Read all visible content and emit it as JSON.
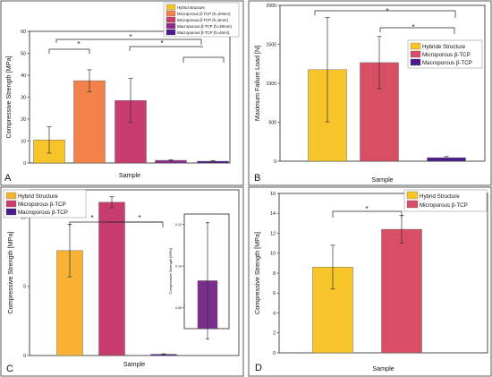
{
  "colors": {
    "hybrid": "#f7c52a",
    "hybrid_c": "#f9b233",
    "micro20": "#f2824a",
    "micro6": "#c93d6e",
    "micro_red": "#d84e65",
    "macro20": "#8e2a8a",
    "macro6": "#4b1a8c",
    "macro": "#4b1a8c",
    "inset": "#7a2f8e"
  },
  "panels": {
    "A": {
      "letter": "A",
      "chart_data": {
        "type": "bar",
        "categories": [
          "Hybrid structure",
          "Microporous β-TCP (h=20mm)",
          "Microporous β-TCP (h=6mm)",
          "Macroporous β-TCP (h=20mm)",
          "Macroporous β-TCP (h=6mm)"
        ],
        "values": [
          10.5,
          37.5,
          28.5,
          1.2,
          0.8
        ],
        "errors": [
          6,
          5,
          10,
          0.3,
          0.3
        ],
        "colors": [
          "#f7c52a",
          "#f2824a",
          "#c93d6e",
          "#8e2a8a",
          "#4b1a8c"
        ],
        "xlabel": "Sample",
        "ylabel": "Compressive Strength [MPa]",
        "ylim": [
          0,
          60
        ],
        "yticks": [
          "0",
          "10",
          "20",
          "30",
          "40",
          "50",
          "60"
        ],
        "legend": [
          "Hybrid structure",
          "Microporous β-TCP (h=20mm)",
          "Microporous β-TCP (h=6mm)",
          "Macroporous β-TCP (h=20mm)",
          "Macroporous β-TCP (h=6mm)"
        ],
        "legend_position": "top-right",
        "significance": [
          "*",
          "*",
          "*"
        ]
      }
    },
    "B": {
      "letter": "B",
      "chart_data": {
        "type": "bar",
        "categories": [
          "Hybride Structure",
          "Microporous β-TCP",
          "Macroporous β-TCP"
        ],
        "values": [
          1175,
          1265,
          45
        ],
        "errors": [
          670,
          335,
          15
        ],
        "colors": [
          "#f7c52a",
          "#d84e65",
          "#4b1a8c"
        ],
        "xlabel": "Sample",
        "ylabel": "Maximum Failure Load [N]",
        "ylim": [
          0,
          2000
        ],
        "yticks": [
          "0",
          "500",
          "1000",
          "1500",
          "2000"
        ],
        "legend": [
          "Hybride Structure",
          "Microporous β-TCP",
          "Macroporous β-TCP"
        ],
        "legend_position": "right",
        "significance": [
          "*",
          "*"
        ]
      }
    },
    "C": {
      "letter": "C",
      "chart_data": {
        "type": "bar",
        "categories": [
          "Hybrid Structure",
          "Microporous β-TCP",
          "Macroporous β-TCP"
        ],
        "values": [
          7.6,
          11.1,
          0.09
        ],
        "errors": [
          1.9,
          0.4,
          0.03
        ],
        "colors": [
          "#f9b233",
          "#c93d6e",
          "#4b1a8c"
        ],
        "xlabel": "Sample",
        "ylabel": "Compressive Strength [MPa]",
        "ylim": [
          0,
          12
        ],
        "yticks": [
          "0",
          "5",
          "10"
        ],
        "legend": [
          "Hybrid Structure",
          "Microporous β-TCP",
          "Macroporous β-TCP"
        ],
        "legend_position": "top-left",
        "significance": [
          "*",
          "*"
        ],
        "inset": {
          "ylabel": "Compressive Strength [MPa]",
          "yticks": [
            "0.08",
            "0.10",
            "0.12"
          ],
          "ylim": [
            0.07,
            0.125
          ],
          "value": 0.093,
          "error": 0.028
        }
      }
    },
    "D": {
      "letter": "D",
      "chart_data": {
        "type": "bar",
        "categories": [
          "Hybrid Structure",
          "Microporous β-TCP"
        ],
        "values": [
          8.6,
          12.4
        ],
        "errors": [
          2.2,
          1.4
        ],
        "colors": [
          "#f7c52a",
          "#d84e65"
        ],
        "xlabel": "Sample",
        "ylabel": "Compressive Strength [MPa]",
        "ylim": [
          0,
          16
        ],
        "yticks": [
          "0",
          "2",
          "4",
          "6",
          "8",
          "10",
          "12",
          "14",
          "16"
        ],
        "legend": [
          "Hybrid Structure",
          "Microporous β-TCP"
        ],
        "legend_position": "top-right",
        "significance": [
          "*"
        ]
      }
    }
  }
}
